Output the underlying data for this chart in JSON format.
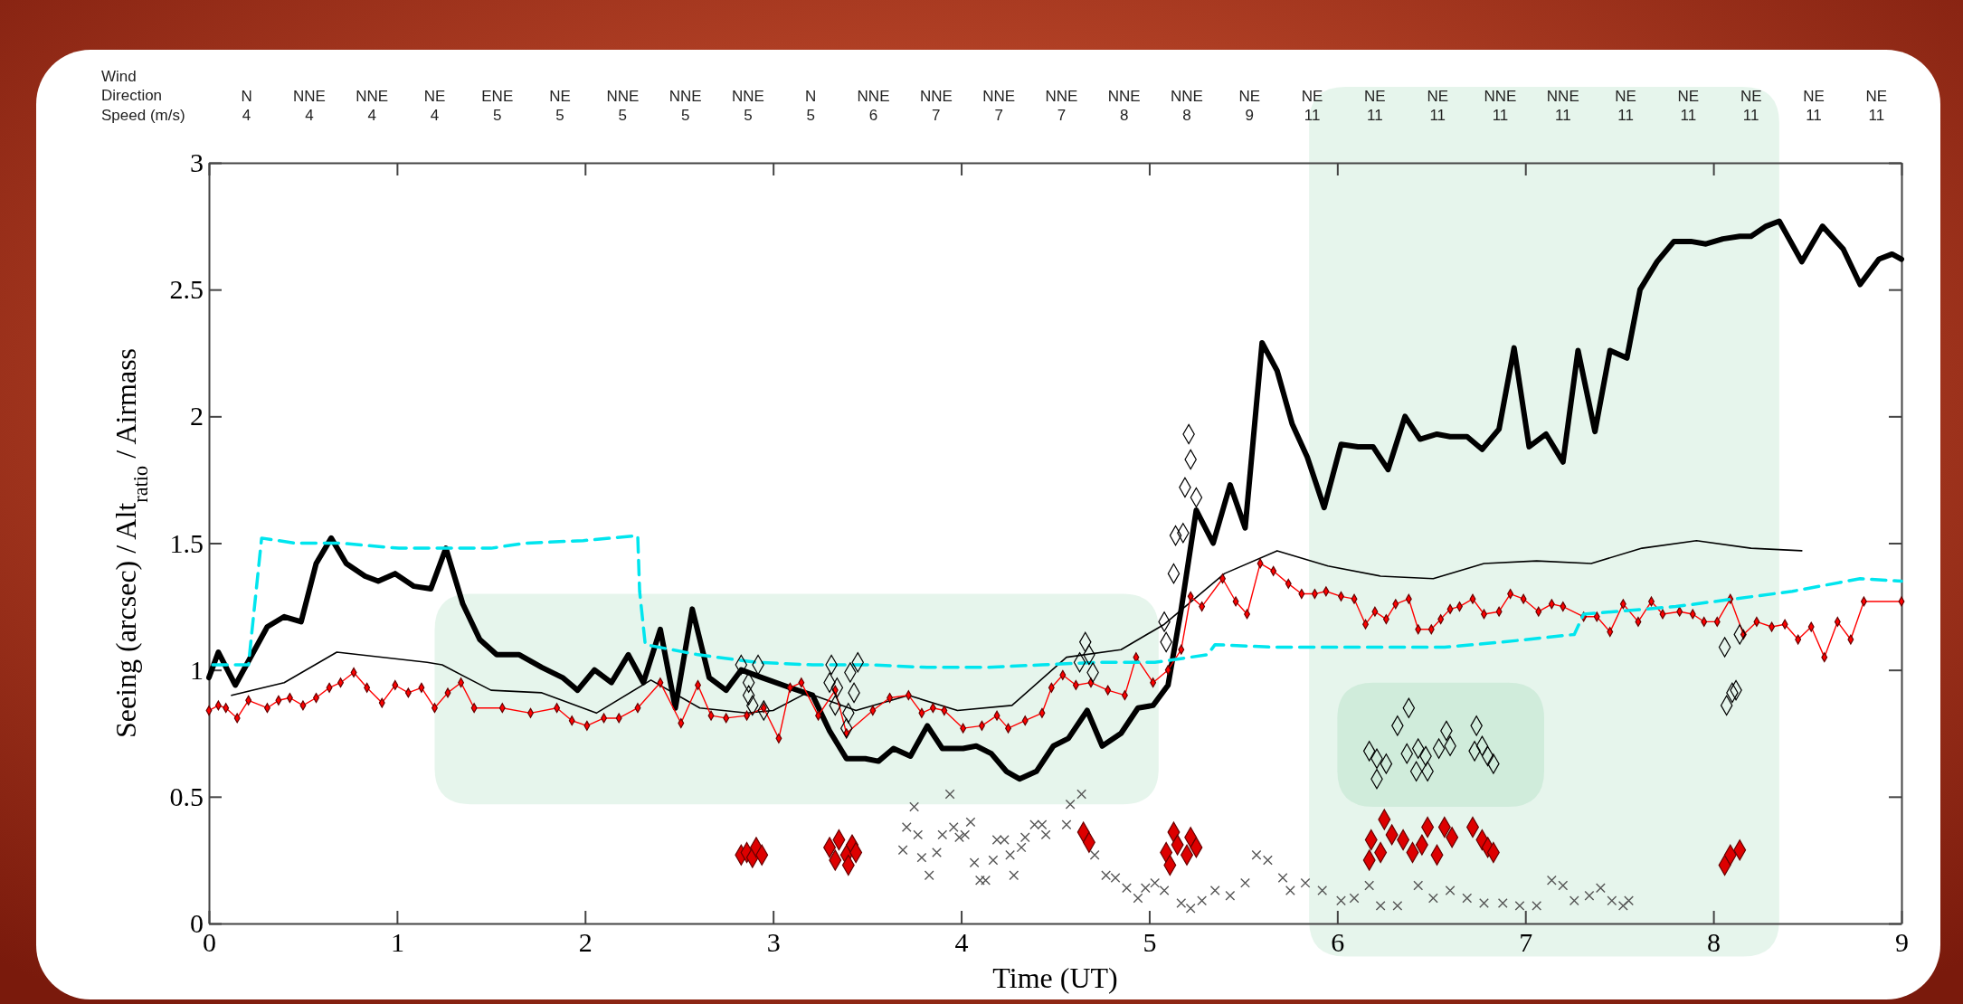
{
  "chart_data": {
    "type": "line",
    "xlabel": "Time (UT)",
    "ylabel": "Seeing (arcsec) / Alt$_{ratio}$ / Airmass",
    "annotations": [
      "Wind\nDirection\nSpeed (m/s)",
      "N\n4",
      "NNE\n4",
      "NNE\n4",
      "NE\n4",
      "ENE\n5",
      "NE\n5",
      "NNE\n5",
      "NNE\n5",
      "NNE\n5",
      "N\n5",
      "NNE\n6",
      "NNE\n7",
      "NNE\n7",
      "NNE\n7",
      "NNE\n8",
      "NNE\n8",
      "NE\n9",
      "NE\n11",
      "NE\n11",
      "NE\n11",
      "NNE\n11",
      "NNE\n11",
      "NE\n11",
      "NE\n11",
      "NE\n11",
      "NE\n11",
      "NE\n11"
    ],
    "xlim": [
      0,
      9
    ],
    "xticks": [
      0,
      1,
      2,
      3,
      4,
      5,
      6,
      7,
      8,
      9
    ],
    "ylim": [
      0,
      3
    ],
    "yticks": [
      0,
      0.5,
      1,
      1.5,
      2,
      2.5,
      3
    ],
    "series": [
      {
        "color": "#000000",
        "marker": "none",
        "line_style": "solid",
        "x": [
          0,
          0.05,
          0.14,
          0.31,
          0.4,
          0.49,
          0.57,
          0.65,
          0.73,
          0.83,
          0.9,
          0.99,
          1.09,
          1.18,
          1.26,
          1.35,
          1.44,
          1.53,
          1.65,
          1.77,
          1.88,
          1.96,
          2.05,
          2.14,
          2.23,
          2.31,
          2.4,
          2.48,
          2.57,
          2.66,
          2.75,
          2.83,
          2.94,
          3.09,
          3.21,
          3.3,
          3.39,
          3.49,
          3.56,
          3.64,
          3.73,
          3.82,
          3.9,
          4.01,
          4.08,
          4.16,
          4.24,
          4.31,
          4.4,
          4.49,
          4.57,
          4.67,
          4.75,
          4.85,
          4.94,
          5.02,
          5.1,
          5.17,
          5.25,
          5.34,
          5.43,
          5.51,
          5.6,
          5.68,
          5.76,
          5.84,
          5.93,
          6.02,
          6.11,
          6.19,
          6.27,
          6.36,
          6.44,
          6.53,
          6.6,
          6.69,
          6.77,
          6.86,
          6.94,
          7.02,
          7.11,
          7.2,
          7.28,
          7.37,
          7.45,
          7.54,
          7.61,
          7.7,
          7.79,
          7.88,
          7.96,
          8.05,
          8.14,
          8.2,
          8.28,
          8.35,
          8.47,
          8.58,
          8.69,
          8.78,
          8.88,
          8.95,
          9.0
        ],
        "values": [
          0.97,
          1.07,
          0.94,
          1.17,
          1.21,
          1.19,
          1.42,
          1.52,
          1.42,
          1.37,
          1.35,
          1.38,
          1.33,
          1.32,
          1.48,
          1.26,
          1.12,
          1.06,
          1.06,
          1.01,
          0.97,
          0.92,
          1.0,
          0.95,
          1.06,
          0.95,
          1.16,
          0.85,
          1.24,
          0.97,
          0.92,
          1.0,
          0.97,
          0.93,
          0.9,
          0.76,
          0.65,
          0.65,
          0.64,
          0.69,
          0.66,
          0.78,
          0.69,
          0.69,
          0.7,
          0.67,
          0.6,
          0.57,
          0.6,
          0.7,
          0.73,
          0.84,
          0.7,
          0.75,
          0.85,
          0.86,
          0.94,
          1.24,
          1.63,
          1.5,
          1.73,
          1.56,
          2.29,
          2.18,
          1.97,
          1.84,
          1.64,
          1.89,
          1.88,
          1.88,
          1.79,
          2.0,
          1.91,
          1.93,
          1.92,
          1.92,
          1.87,
          1.95,
          2.27,
          1.88,
          1.93,
          1.82,
          2.26,
          1.94,
          2.26,
          2.23,
          2.5,
          2.61,
          2.69,
          2.69,
          2.68,
          2.7,
          2.71,
          2.71,
          2.75,
          2.77,
          2.61,
          2.75,
          2.66,
          2.52,
          2.62,
          2.64,
          2.62
        ]
      },
      {
        "color": "#000000",
        "marker": "none",
        "line_style": "solid",
        "x": [
          0.12,
          0.4,
          0.68,
          1.16,
          1.24,
          1.5,
          1.77,
          2.06,
          2.35,
          2.61,
          2.86,
          3.0,
          3.18,
          3.44,
          3.72,
          3.98,
          4.27,
          4.56,
          4.85,
          5.08,
          5.4,
          5.68,
          5.95,
          6.23,
          6.51,
          6.78,
          7.06,
          7.35,
          7.62,
          7.91,
          8.2,
          8.47
        ],
        "values": [
          0.9,
          0.95,
          1.07,
          1.03,
          1.02,
          0.92,
          0.91,
          0.83,
          0.96,
          0.85,
          0.83,
          0.84,
          0.91,
          0.84,
          0.9,
          0.84,
          0.86,
          1.05,
          1.08,
          1.18,
          1.38,
          1.47,
          1.41,
          1.37,
          1.36,
          1.42,
          1.43,
          1.42,
          1.48,
          1.51,
          1.48,
          1.47
        ]
      },
      {
        "color": "#ff0000",
        "marker": "diamond",
        "line_style": "solid",
        "x": [
          0,
          0.05,
          0.09,
          0.15,
          0.21,
          0.31,
          0.37,
          0.43,
          0.5,
          0.57,
          0.64,
          0.7,
          0.77,
          0.84,
          0.92,
          0.99,
          1.06,
          1.13,
          1.2,
          1.27,
          1.34,
          1.41,
          1.56,
          1.71,
          1.85,
          1.93,
          2.01,
          2.1,
          2.18,
          2.28,
          2.4,
          2.51,
          2.6,
          2.67,
          2.75,
          2.86,
          2.95,
          3.03,
          3.09,
          3.15,
          3.24,
          3.33,
          3.39,
          3.53,
          3.62,
          3.72,
          3.79,
          3.85,
          3.91,
          4.01,
          4.11,
          4.19,
          4.25,
          4.34,
          4.43,
          4.48,
          4.54,
          4.61,
          4.69,
          4.78,
          4.87,
          4.93,
          5.02,
          5.1,
          5.17,
          5.22,
          5.28,
          5.39,
          5.46,
          5.52,
          5.59,
          5.66,
          5.74,
          5.81,
          5.88,
          5.94,
          6.02,
          6.09,
          6.15,
          6.2,
          6.26,
          6.31,
          6.38,
          6.43,
          6.5,
          6.55,
          6.6,
          6.65,
          6.72,
          6.78,
          6.86,
          6.92,
          6.99,
          7.07,
          7.14,
          7.2,
          7.31,
          7.38,
          7.45,
          7.52,
          7.6,
          7.67,
          7.73,
          7.82,
          7.89,
          7.95,
          8.02,
          8.09,
          8.16,
          8.23,
          8.31,
          8.38,
          8.45,
          8.52,
          8.59,
          8.66,
          8.73,
          8.8,
          9.0
        ],
        "values": [
          0.84,
          0.86,
          0.85,
          0.81,
          0.88,
          0.85,
          0.88,
          0.89,
          0.86,
          0.89,
          0.93,
          0.95,
          0.99,
          0.93,
          0.87,
          0.94,
          0.91,
          0.93,
          0.85,
          0.91,
          0.95,
          0.85,
          0.85,
          0.83,
          0.85,
          0.8,
          0.78,
          0.81,
          0.81,
          0.85,
          0.95,
          0.79,
          0.94,
          0.82,
          0.81,
          0.82,
          0.85,
          0.73,
          0.93,
          0.95,
          0.82,
          0.92,
          0.75,
          0.84,
          0.89,
          0.9,
          0.83,
          0.85,
          0.84,
          0.77,
          0.78,
          0.82,
          0.77,
          0.8,
          0.83,
          0.93,
          0.98,
          0.94,
          0.95,
          0.92,
          0.9,
          1.05,
          0.95,
          1.0,
          1.08,
          1.29,
          1.25,
          1.36,
          1.27,
          1.22,
          1.42,
          1.39,
          1.34,
          1.3,
          1.3,
          1.31,
          1.29,
          1.28,
          1.18,
          1.23,
          1.2,
          1.26,
          1.28,
          1.16,
          1.16,
          1.2,
          1.24,
          1.25,
          1.28,
          1.22,
          1.23,
          1.3,
          1.28,
          1.23,
          1.26,
          1.25,
          1.21,
          1.21,
          1.15,
          1.26,
          1.19,
          1.27,
          1.22,
          1.23,
          1.22,
          1.19,
          1.19,
          1.28,
          1.14,
          1.19,
          1.17,
          1.18,
          1.12,
          1.17,
          1.05,
          1.19,
          1.12,
          1.27,
          1.27
        ]
      },
      {
        "color": "#00e5ee",
        "marker": "none",
        "line_style": "dashed",
        "x": [
          0.02,
          0.21,
          0.28,
          0.46,
          0.7,
          1.01,
          1.31,
          1.5,
          1.68,
          1.99,
          2.28,
          2.29,
          2.32,
          2.6,
          2.91,
          3.21,
          3.52,
          3.82,
          4.13,
          4.43,
          4.72,
          5.03,
          5.31,
          5.35,
          5.65,
          5.95,
          6.26,
          6.57,
          6.88,
          7.26,
          7.31,
          7.8,
          8.11,
          8.42,
          8.78,
          9.0
        ],
        "values": [
          1.02,
          1.02,
          1.52,
          1.5,
          1.5,
          1.48,
          1.48,
          1.48,
          1.5,
          1.51,
          1.53,
          1.31,
          1.1,
          1.06,
          1.03,
          1.02,
          1.02,
          1.01,
          1.01,
          1.02,
          1.03,
          1.03,
          1.06,
          1.1,
          1.09,
          1.09,
          1.09,
          1.09,
          1.11,
          1.14,
          1.22,
          1.25,
          1.28,
          1.31,
          1.36,
          1.35
        ]
      },
      {
        "type": "scatter",
        "color": "#000000",
        "marker": "diamond",
        "x": [
          2.83,
          2.87,
          2.92,
          2.87,
          2.89,
          2.95,
          3.31,
          3.3,
          3.34,
          3.41,
          3.45,
          3.43,
          3.33,
          3.4,
          3.39,
          4.66,
          4.68,
          4.7,
          4.63,
          5.21,
          5.22,
          5.19,
          5.25,
          5.14,
          5.18,
          5.13,
          5.08,
          5.09,
          6.17,
          6.21,
          6.26,
          6.21,
          6.32,
          6.38,
          6.37,
          6.43,
          6.42,
          6.48,
          6.54,
          6.58,
          6.6,
          6.47,
          6.74,
          6.73,
          6.77,
          6.8,
          6.83,
          8.06,
          8.14,
          8.07,
          8.1,
          8.12
        ],
        "values": [
          1.02,
          0.95,
          1.02,
          0.9,
          0.86,
          0.84,
          1.02,
          0.95,
          0.93,
          0.99,
          1.03,
          0.91,
          0.86,
          0.83,
          0.77,
          1.11,
          1.06,
          0.99,
          1.03,
          1.93,
          1.83,
          1.72,
          1.68,
          1.53,
          1.54,
          1.38,
          1.19,
          1.11,
          0.68,
          0.65,
          0.63,
          0.57,
          0.78,
          0.85,
          0.67,
          0.69,
          0.6,
          0.6,
          0.69,
          0.76,
          0.7,
          0.66,
          0.78,
          0.68,
          0.7,
          0.66,
          0.63,
          1.09,
          1.14,
          0.86,
          0.91,
          0.92
        ]
      },
      {
        "type": "scatter",
        "color": "#dd0000",
        "marker": "diamond",
        "x": [
          2.83,
          2.86,
          2.89,
          2.91,
          2.94,
          3.3,
          3.33,
          3.35,
          3.39,
          3.4,
          3.42,
          3.44,
          4.64,
          4.65,
          4.67,
          4.68,
          5.09,
          5.11,
          5.13,
          5.15,
          5.2,
          5.22,
          5.25,
          6.17,
          6.18,
          6.23,
          6.25,
          6.29,
          6.35,
          6.4,
          6.45,
          6.48,
          6.53,
          6.57,
          6.61,
          6.72,
          6.77,
          6.8,
          6.83,
          8.06,
          8.09,
          8.14
        ],
        "values": [
          0.27,
          0.28,
          0.26,
          0.3,
          0.27,
          0.3,
          0.25,
          0.33,
          0.27,
          0.23,
          0.31,
          0.28,
          null,
          0.36,
          null,
          0.32,
          0.28,
          0.23,
          0.36,
          0.31,
          0.27,
          0.34,
          0.3,
          0.25,
          0.33,
          0.28,
          0.41,
          0.35,
          0.33,
          0.28,
          0.31,
          0.38,
          0.27,
          0.38,
          0.34,
          0.38,
          0.33,
          0.3,
          0.28,
          0.23,
          0.27,
          0.29
        ]
      },
      {
        "type": "scatter",
        "color": "#555555",
        "marker": "cross",
        "x": [
          3.69,
          3.71,
          3.75,
          3.77,
          3.79,
          3.83,
          3.87,
          3.9,
          3.94,
          3.96,
          3.99,
          4.02,
          4.05,
          4.07,
          4.1,
          4.13,
          4.17,
          4.19,
          4.23,
          4.26,
          4.28,
          4.32,
          4.34,
          4.39,
          4.43,
          4.45,
          4.56,
          4.58,
          4.64,
          4.71,
          4.77,
          4.82,
          4.88,
          4.94,
          4.98,
          5.03,
          5.08,
          5.17,
          5.22,
          5.28,
          5.35,
          5.43,
          5.51,
          5.57,
          5.63,
          5.71,
          5.75,
          5.83,
          5.92,
          6.02,
          6.09,
          6.17,
          6.23,
          6.32,
          6.43,
          6.51,
          6.6,
          6.69,
          6.78,
          6.88,
          6.97,
          7.06,
          7.14,
          7.2,
          7.26,
          7.34,
          7.4,
          7.46,
          7.52,
          7.55
        ],
        "values": [
          0.29,
          0.38,
          0.46,
          0.35,
          0.26,
          0.19,
          0.28,
          0.35,
          0.51,
          0.38,
          0.34,
          0.35,
          0.4,
          0.24,
          0.17,
          0.17,
          0.25,
          0.33,
          0.33,
          0.27,
          0.19,
          0.3,
          0.34,
          0.39,
          0.39,
          0.35,
          0.39,
          0.47,
          0.51,
          0.27,
          0.19,
          0.18,
          0.14,
          0.1,
          0.14,
          0.16,
          0.13,
          0.08,
          0.06,
          0.09,
          0.13,
          0.11,
          0.16,
          0.27,
          0.25,
          0.18,
          0.13,
          0.16,
          0.13,
          0.09,
          0.1,
          0.15,
          0.07,
          0.07,
          0.15,
          0.1,
          0.13,
          0.1,
          0.08,
          0.08,
          0.07,
          0.07,
          0.17,
          0.15,
          0.09,
          0.11,
          0.14,
          0.09,
          0.07,
          0.09
        ]
      }
    ]
  }
}
